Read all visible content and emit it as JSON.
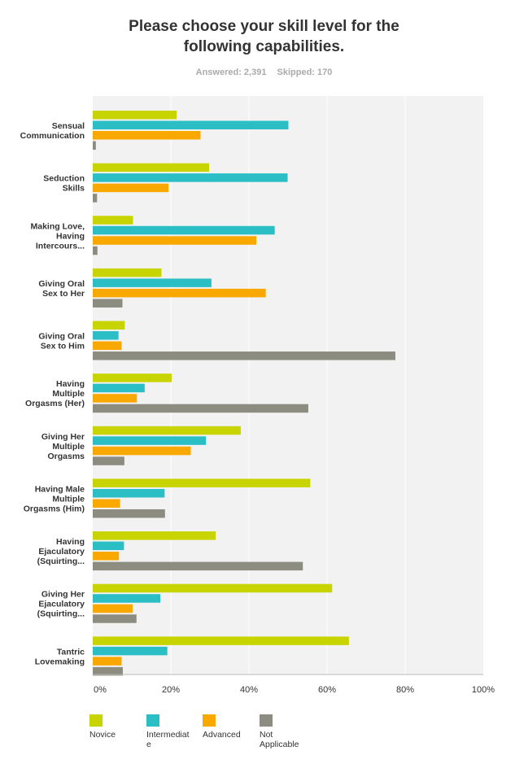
{
  "header": {
    "title_line1": "Please choose your skill level for the",
    "title_line2": "following capabilities.",
    "answered": "Answered: 2,391",
    "skipped": "Skipped: 170"
  },
  "colors": {
    "novice": "#c8d400",
    "intermediate": "#2bbfc5",
    "advanced": "#f9a800",
    "not_applicable": "#8c8c80",
    "plot_background": "#f2f2f2",
    "gridline": "#ffffff"
  },
  "chart_data": {
    "type": "bar",
    "orientation": "horizontal",
    "title": "Please choose your skill level for the following capabilities.",
    "categories": [
      [
        "Sensual",
        "Communication"
      ],
      [
        "Seduction",
        "Skills"
      ],
      [
        "Making Love,",
        "Having",
        "Intercours..."
      ],
      [
        "Giving Oral",
        "Sex to Her"
      ],
      [
        "Giving Oral",
        "Sex to Him"
      ],
      [
        "Having",
        "Multiple",
        "Orgasms (Her)"
      ],
      [
        "Giving Her",
        "Multiple",
        "Orgasms"
      ],
      [
        "Having Male",
        "Multiple",
        "Orgasms (Him)"
      ],
      [
        "Having",
        "Ejaculatory",
        "(Squirting..."
      ],
      [
        "Giving Her",
        "Ejaculatory",
        "(Squirting..."
      ],
      [
        "Tantric",
        "Lovemaking"
      ]
    ],
    "series": [
      {
        "name": "Novice",
        "values": [
          21.5,
          29.8,
          10.3,
          17.6,
          8.2,
          20.2,
          37.9,
          55.7,
          31.5,
          61.3,
          65.6
        ]
      },
      {
        "name": "Intermediate",
        "values": [
          50.1,
          49.9,
          46.6,
          30.4,
          6.6,
          13.3,
          29.0,
          18.4,
          8.0,
          17.3,
          19.1
        ]
      },
      {
        "name": "Advanced",
        "values": [
          27.6,
          19.4,
          41.9,
          44.3,
          7.4,
          11.3,
          25.1,
          7.0,
          6.7,
          10.2,
          7.4
        ]
      },
      {
        "name": "Not Applicable",
        "values": [
          0.8,
          1.1,
          1.2,
          7.6,
          77.5,
          55.2,
          8.1,
          18.5,
          53.8,
          11.2,
          7.7
        ]
      }
    ],
    "xlim": [
      0,
      100
    ],
    "xticks": [
      "0%",
      "20%",
      "40%",
      "60%",
      "80%",
      "100%"
    ],
    "grid": true,
    "legend_position": "bottom",
    "legend": [
      {
        "label": "Novice",
        "lines": [
          "Novice"
        ]
      },
      {
        "label": "Intermediate",
        "lines": [
          "Intermediat",
          "e"
        ]
      },
      {
        "label": "Advanced",
        "lines": [
          "Advanced"
        ]
      },
      {
        "label": "Not Applicable",
        "lines": [
          "Not",
          "Applicable"
        ]
      }
    ]
  }
}
